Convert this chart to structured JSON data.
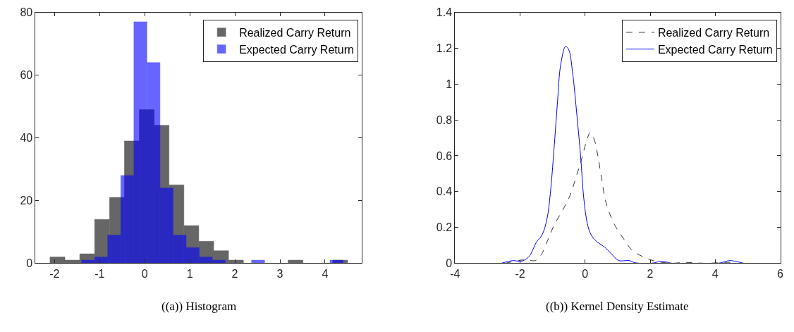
{
  "chart_data": [
    {
      "type": "bar",
      "xlim": [
        -2.42,
        4.81
      ],
      "xticks": [
        -2,
        -1,
        0,
        1,
        2,
        3,
        4
      ],
      "ylim": [
        0,
        80
      ],
      "yticks": [
        0,
        20,
        40,
        60,
        80
      ],
      "legend": "top right",
      "annotations": [
        "((a)) Histogram"
      ],
      "series": [
        {
          "name": "Realized Carry Return",
          "color": "#666666",
          "x": [
            -1.935,
            -1.605,
            -1.275,
            -0.945,
            -0.615,
            -0.285,
            0.045,
            0.375,
            0.705,
            1.035,
            1.365,
            1.695,
            2.025,
            2.355,
            2.685,
            3.015,
            3.345,
            3.675,
            4.005,
            4.335
          ],
          "values": [
            2,
            1,
            3,
            14,
            21,
            39,
            49,
            44,
            25,
            12,
            7,
            4,
            1,
            0,
            0,
            0,
            1,
            0,
            0,
            1
          ]
        },
        {
          "name": "Expected Carry Return",
          "color": "#6666ff",
          "x": [
            -1.255,
            -0.965,
            -0.675,
            -0.385,
            -0.095,
            0.195,
            0.485,
            0.775,
            1.065,
            1.355,
            1.645,
            1.935,
            2.225,
            2.515,
            2.805,
            3.095,
            3.385,
            3.675,
            3.965,
            4.255
          ],
          "values": [
            1,
            2,
            9,
            28,
            77,
            64,
            24,
            9,
            5,
            2,
            1,
            0,
            0,
            1,
            0,
            0,
            0,
            0,
            0,
            1
          ]
        }
      ]
    },
    {
      "type": "line",
      "xlim": [
        -4,
        6
      ],
      "xticks": [
        -4,
        -2,
        0,
        2,
        4,
        6
      ],
      "ylim": [
        0,
        1.4
      ],
      "yticks": [
        0,
        0.2,
        0.4,
        0.6,
        0.8,
        1,
        1.2,
        1.4
      ],
      "legend": "top right",
      "annotations": [
        "((b)) Kernel Density Estimate"
      ],
      "series": [
        {
          "name": "Realized Carry Return",
          "color": "#333333",
          "line_style": "dashed",
          "x": [
            -2.46,
            -2.1,
            -1.81,
            -1.53,
            -1.35,
            -1.17,
            -0.96,
            -0.68,
            -0.46,
            -0.28,
            -0.11,
            0.04,
            0.16,
            0.28,
            0.39,
            0.5,
            0.64,
            0.89,
            1.17,
            1.46,
            1.81,
            2.17,
            2.67,
            3.02,
            3.31,
            3.74,
            4.38,
            4.66
          ],
          "values": [
            0,
            0.013,
            0.02,
            0.015,
            0.047,
            0.12,
            0.21,
            0.3,
            0.38,
            0.48,
            0.58,
            0.68,
            0.73,
            0.69,
            0.6,
            0.48,
            0.34,
            0.22,
            0.14,
            0.07,
            0.034,
            0.011,
            0,
            0.005,
            0.003,
            0,
            0.005,
            0
          ]
        },
        {
          "name": "Expected Carry Return",
          "color": "#0000ff",
          "line_style": "solid",
          "x": [
            -2.58,
            -2.2,
            -1.99,
            -1.74,
            -1.5,
            -1.32,
            -1.17,
            -1.07,
            -0.96,
            -0.85,
            -0.75,
            -0.6,
            -0.5,
            -0.39,
            -0.25,
            -0.14,
            -0.04,
            0.07,
            0.18,
            0.36,
            0.6,
            0.82,
            1.03,
            1.35,
            1.53,
            2.03,
            2.38,
            2.67,
            4.09,
            4.45,
            4.63,
            4.88
          ],
          "values": [
            0,
            0.015,
            0.01,
            0.034,
            0.117,
            0.16,
            0.25,
            0.39,
            0.63,
            0.9,
            1.11,
            1.21,
            1.19,
            1.07,
            0.82,
            0.6,
            0.36,
            0.22,
            0.16,
            0.12,
            0.09,
            0.05,
            0.015,
            0.015,
            0.003,
            0,
            0.011,
            0,
            0,
            0.015,
            0.01,
            0
          ]
        }
      ]
    }
  ]
}
